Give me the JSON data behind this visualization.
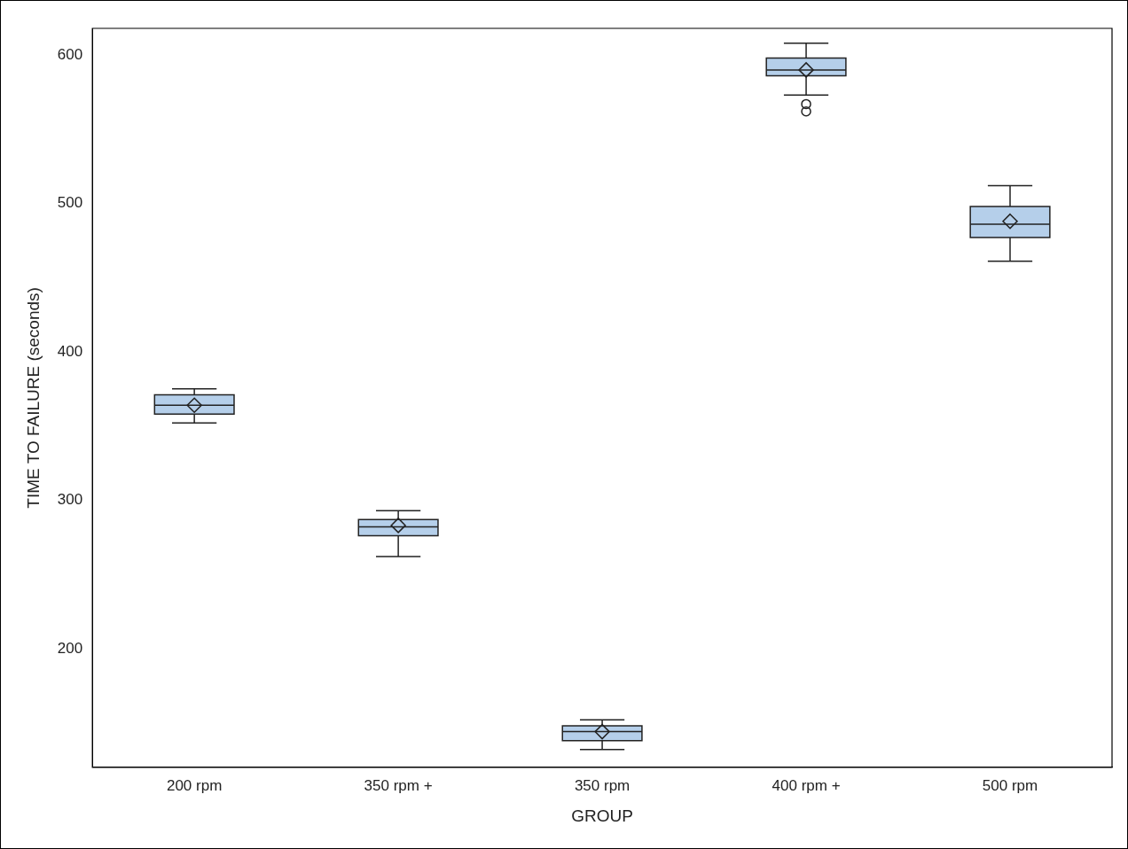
{
  "chart_data": {
    "type": "box",
    "xlabel": "GROUP",
    "ylabel": "TIME TO FAILURE (seconds)",
    "categories": [
      "200 rpm",
      "350 rpm +",
      "350 rpm",
      "400 rpm +",
      "500 rpm"
    ],
    "color": "#b5cfea",
    "boxes": [
      {
        "low": 352,
        "q1": 358,
        "median": 364,
        "q3": 371,
        "high": 375,
        "mean": 364
      },
      {
        "low": 262,
        "q1": 276,
        "median": 282,
        "q3": 287,
        "high": 293,
        "mean": 283
      },
      {
        "low": 132,
        "q1": 138,
        "median": 144,
        "q3": 148,
        "high": 152,
        "mean": 144
      },
      {
        "low": 573,
        "q1": 586,
        "median": 590,
        "q3": 598,
        "high": 608,
        "mean": 590,
        "outliers": [
          567,
          562
        ]
      },
      {
        "low": 461,
        "q1": 477,
        "median": 486,
        "q3": 498,
        "high": 512,
        "mean": 488
      }
    ],
    "ylim": [
      120,
      618
    ],
    "yticks": [
      200,
      300,
      400,
      500,
      600
    ]
  }
}
